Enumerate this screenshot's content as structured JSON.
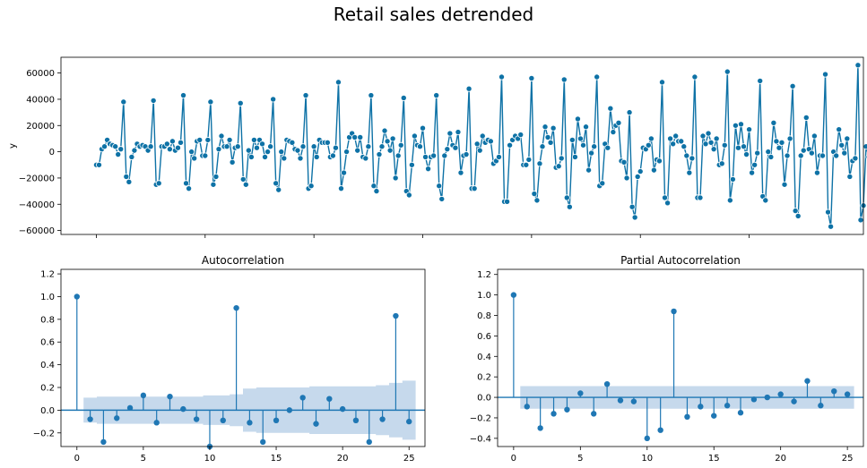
{
  "suptitle": "Retail sales detrended",
  "chart_data": [
    {
      "type": "line",
      "title": "",
      "xlabel": "",
      "ylabel": "y",
      "ylim": [
        -63000,
        72000
      ],
      "yticks": [
        -60000,
        -40000,
        -20000,
        0,
        20000,
        40000,
        60000
      ],
      "ytick_labels": [
        "−60000",
        "−40000",
        "−20000",
        "0",
        "20000",
        "40000",
        "60000"
      ],
      "xtick_labels": [],
      "color": "#0e72a6",
      "values": [
        -10000,
        -10000,
        2000,
        4000,
        9000,
        6000,
        5000,
        4000,
        -2000,
        2000,
        38000,
        -19000,
        -23000,
        -4000,
        1000,
        6000,
        4000,
        5000,
        4000,
        1000,
        4000,
        39000,
        -25000,
        -24000,
        4000,
        4000,
        6000,
        2000,
        8000,
        1000,
        3000,
        7000,
        43000,
        -24000,
        -28000,
        0,
        -5000,
        8000,
        9000,
        -3000,
        -3000,
        9000,
        38000,
        -25000,
        -19000,
        2000,
        12000,
        4000,
        4000,
        9000,
        -8000,
        3000,
        4000,
        37000,
        -21000,
        -25000,
        1000,
        -4000,
        9000,
        3000,
        9000,
        6000,
        -4000,
        0,
        4000,
        40000,
        -24000,
        -29000,
        0,
        -5000,
        9000,
        8000,
        7000,
        2000,
        1000,
        -5000,
        4000,
        43000,
        -28000,
        -26000,
        4000,
        -4000,
        9000,
        7000,
        7000,
        7000,
        -4000,
        -3000,
        3000,
        53000,
        -28000,
        -16000,
        0,
        11000,
        14000,
        11000,
        1000,
        11000,
        -4000,
        -5000,
        4000,
        43000,
        -26000,
        -30000,
        -2000,
        4000,
        16000,
        8000,
        1000,
        10000,
        -20000,
        -3000,
        5000,
        41000,
        -30000,
        -33000,
        -10000,
        12000,
        5000,
        4000,
        18000,
        -4000,
        -13000,
        -4000,
        -3000,
        43000,
        -26000,
        -36000,
        -3000,
        2000,
        14000,
        5000,
        3000,
        15000,
        -16000,
        -3000,
        -2000,
        48000,
        -28000,
        -28000,
        6000,
        1000,
        12000,
        7000,
        9000,
        8000,
        -9000,
        -7000,
        -4000,
        57000,
        -38000,
        -38000,
        5000,
        9000,
        12000,
        10000,
        13000,
        -10000,
        -10000,
        -6000,
        56000,
        -32000,
        -37000,
        -9000,
        4000,
        19000,
        11000,
        7000,
        18000,
        -12000,
        -11000,
        -5000,
        55000,
        -35000,
        -42000,
        9000,
        -4000,
        25000,
        10000,
        5000,
        19000,
        -14000,
        -1000,
        4000,
        57000,
        -26000,
        -24000,
        6000,
        3000,
        33000,
        15000,
        20000,
        22000,
        -7000,
        -8000,
        -20000,
        30000,
        -42000,
        -50000,
        -19000,
        -15000,
        3000,
        2000,
        5000,
        10000,
        -14000,
        -6000,
        -7000,
        53000,
        -35000,
        -39000,
        10000,
        6000,
        12000,
        8000,
        8000,
        4000,
        -3000,
        -16000,
        -5000,
        57000,
        -35000,
        -35000,
        12000,
        6000,
        14000,
        7000,
        2000,
        10000,
        -10000,
        -9000,
        5000,
        61000,
        -37000,
        -21000,
        20000,
        3000,
        21000,
        4000,
        -2000,
        17000,
        -16000,
        -10000,
        -1000,
        54000,
        -34000,
        -37000,
        0,
        -4000,
        22000,
        8000,
        3000,
        7000,
        -25000,
        -3000,
        10000,
        50000,
        -45000,
        -49000,
        -3000,
        1000,
        26000,
        2000,
        -1000,
        12000,
        -16000,
        -3000,
        -3000,
        59000,
        -46000,
        -57000,
        0,
        -3000,
        17000,
        5000,
        -1000,
        10000,
        -19000,
        -7000,
        -5000,
        66000,
        -52000,
        -41000,
        4000,
        -4000,
        14000
      ]
    },
    {
      "type": "scatter",
      "title": "Autocorrelation",
      "xlabel": "",
      "ylabel": "",
      "xlim": [
        -1.2,
        26.2
      ],
      "ylim": [
        -0.32,
        1.24
      ],
      "xticks": [
        0,
        5,
        10,
        15,
        20,
        25
      ],
      "yticks": [
        -0.2,
        0.0,
        0.2,
        0.4,
        0.6,
        0.8,
        1.0,
        1.2
      ],
      "ytick_labels": [
        "−0.2",
        "0.0",
        "0.2",
        "0.4",
        "0.6",
        "0.8",
        "1.0",
        "1.2"
      ],
      "color": "#1f77b4",
      "band_color": "#c6d9ec",
      "lags": [
        0,
        1,
        2,
        3,
        4,
        5,
        6,
        7,
        8,
        9,
        10,
        11,
        12,
        13,
        14,
        15,
        16,
        17,
        18,
        19,
        20,
        21,
        22,
        23,
        24,
        25
      ],
      "values": [
        1.0,
        -0.08,
        -0.28,
        -0.07,
        0.02,
        0.13,
        -0.11,
        0.12,
        0.01,
        -0.08,
        -0.32,
        -0.09,
        0.9,
        -0.11,
        -0.28,
        -0.09,
        0.0,
        0.11,
        -0.12,
        0.1,
        0.01,
        -0.09,
        -0.28,
        -0.08,
        0.83,
        -0.1
      ],
      "confint": [
        0.11,
        0.11,
        0.12,
        0.12,
        0.12,
        0.12,
        0.12,
        0.12,
        0.12,
        0.12,
        0.13,
        0.13,
        0.14,
        0.19,
        0.2,
        0.2,
        0.2,
        0.2,
        0.21,
        0.21,
        0.21,
        0.21,
        0.21,
        0.22,
        0.24,
        0.26
      ]
    },
    {
      "type": "scatter",
      "title": "Partial Autocorrelation",
      "xlabel": "",
      "ylabel": "",
      "xlim": [
        -1.2,
        26.2
      ],
      "ylim": [
        -0.48,
        1.25
      ],
      "xticks": [
        0,
        5,
        10,
        15,
        20,
        25
      ],
      "yticks": [
        -0.4,
        -0.2,
        0.0,
        0.2,
        0.4,
        0.6,
        0.8,
        1.0,
        1.2
      ],
      "ytick_labels": [
        "−0.4",
        "−0.2",
        "0.0",
        "0.2",
        "0.4",
        "0.6",
        "0.8",
        "1.0",
        "1.2"
      ],
      "color": "#1f77b4",
      "band_color": "#c6d9ec",
      "lags": [
        0,
        1,
        2,
        3,
        4,
        5,
        6,
        7,
        8,
        9,
        10,
        11,
        12,
        13,
        14,
        15,
        16,
        17,
        18,
        19,
        20,
        21,
        22,
        23,
        24,
        25
      ],
      "values": [
        1.0,
        -0.09,
        -0.3,
        -0.16,
        -0.12,
        0.04,
        -0.16,
        0.13,
        -0.03,
        -0.04,
        -0.4,
        -0.32,
        0.84,
        -0.19,
        -0.09,
        -0.18,
        -0.08,
        -0.15,
        -0.02,
        0.0,
        0.03,
        -0.04,
        0.16,
        -0.08,
        0.06,
        0.03
      ],
      "confint": 0.11
    }
  ]
}
